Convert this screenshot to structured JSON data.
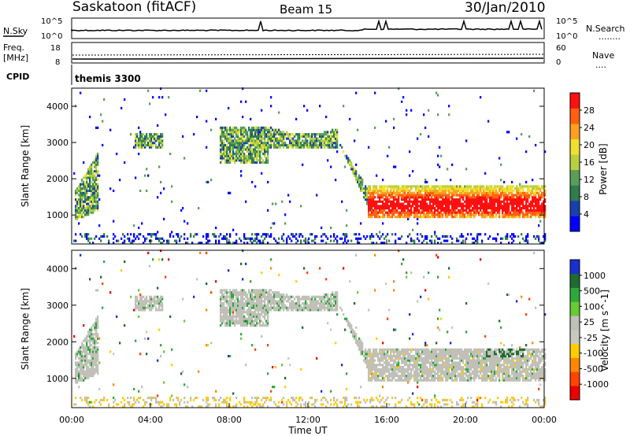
{
  "header": {
    "station": "Saskatoon (fitACF)",
    "beam": "Beam 15",
    "date": "30/Jan/2010"
  },
  "noise_panel": {
    "left_label": "N.Sky",
    "left_ticks": [
      "10^5",
      "10^0"
    ],
    "right_ticks": [
      "10^5",
      "10^0"
    ],
    "right_label": "N.Search",
    "right_legend": "........"
  },
  "freq_panel": {
    "left_label_1": "Freq.",
    "left_label_2": "[MHz]",
    "left_ticks": [
      "18",
      "8"
    ],
    "right_ticks": [
      "60",
      "0"
    ],
    "right_label": "Nave",
    "right_legend": "...."
  },
  "cpid_panel": {
    "label": "CPID",
    "value": "themis 3300"
  },
  "colors": {
    "power_scale": [
      "#0000ff",
      "#1a40b0",
      "#2e7d4f",
      "#5a9e5a",
      "#b8d040",
      "#f0e030",
      "#ffa020",
      "#ff6010",
      "#ff1010"
    ],
    "velocity_scale": [
      "#1a2fd0",
      "#1f6b30",
      "#2ea83a",
      "#66cc33",
      "#c0c0b8",
      "#c8c8c0",
      "#ffcc00",
      "#ff8800",
      "#ff4400",
      "#ee0000"
    ]
  },
  "chart_data": [
    {
      "type": "heatmap",
      "name": "power",
      "ylabel": "Slant Range [km]",
      "yticks": [
        "4000",
        "3000",
        "2000",
        "1000"
      ],
      "ylim": [
        200,
        4500
      ],
      "xlim": [
        0,
        24
      ],
      "colorbar_label": "Power [dB]",
      "colorbar_ticks": [
        "28",
        "24",
        "20",
        "16",
        "12",
        "8",
        "4"
      ],
      "colorbar_range": [
        0,
        32
      ],
      "echo_bands": [
        {
          "t_start": 0.1,
          "t_end": 1.3,
          "r_low": 800,
          "r_high": 2700
        },
        {
          "t_start": 3.2,
          "t_end": 4.6,
          "r_low": 2800,
          "r_high": 3200
        },
        {
          "t_start": 7.5,
          "t_end": 10.0,
          "r_low": 2400,
          "r_high": 3400
        },
        {
          "t_start": 10.0,
          "t_end": 13.5,
          "r_low": 2800,
          "r_high": 3400
        },
        {
          "t_start": 13.5,
          "t_end": 15.0,
          "r_low": 1200,
          "r_high": 3000
        },
        {
          "t_start": 15.0,
          "t_end": 24.0,
          "r_low": 900,
          "r_high": 1800
        }
      ]
    },
    {
      "type": "heatmap",
      "name": "velocity",
      "ylabel": "Slant Range [km]",
      "yticks": [
        "4000",
        "3000",
        "2000",
        "1000"
      ],
      "ylim": [
        200,
        4500
      ],
      "xlim": [
        0,
        24
      ],
      "xticks": [
        "00:00",
        "04:00",
        "08:00",
        "12:00",
        "16:00",
        "20:00",
        "00:00"
      ],
      "xlabel": "Time UT",
      "colorbar_label": "Velocity [m s^-1]",
      "colorbar_ticks": [
        "1000",
        "500",
        "100",
        "25",
        "-25",
        "-100",
        "-500",
        "-1000"
      ]
    }
  ]
}
